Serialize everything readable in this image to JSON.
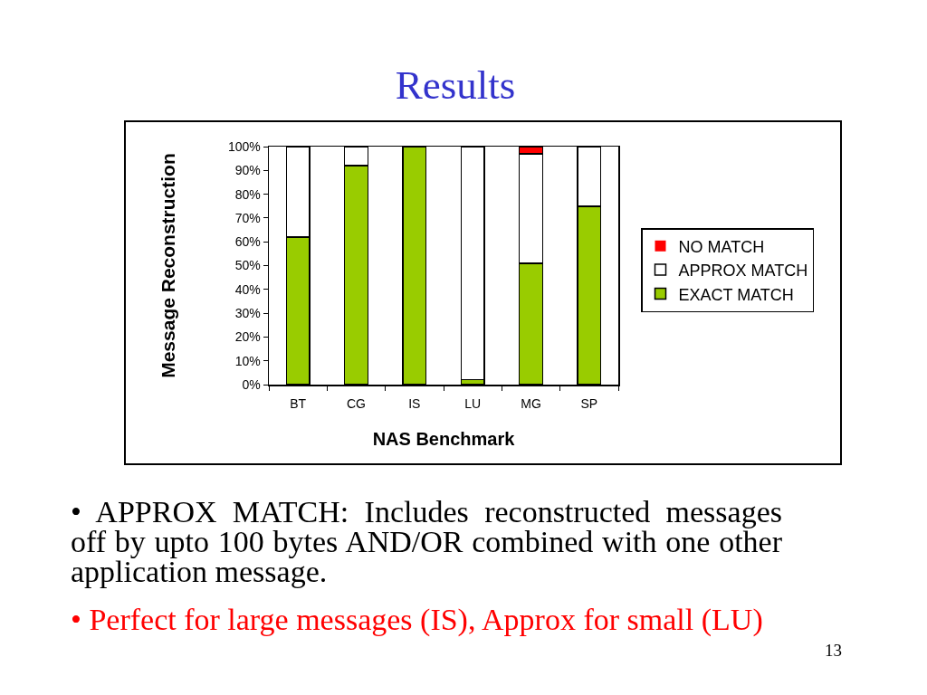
{
  "chart_data": {
    "type": "bar",
    "title": "Results",
    "xlabel": "NAS Benchmark",
    "ylabel": "Message Reconstruction",
    "categories": [
      "BT",
      "CG",
      "IS",
      "LU",
      "MG",
      "SP"
    ],
    "series": [
      {
        "name": "EXACT MATCH",
        "color": "#99cc00",
        "values": [
          62,
          92,
          100,
          2,
          51,
          75
        ]
      },
      {
        "name": "APPROX MATCH",
        "color": "#ffffff",
        "values": [
          38,
          8,
          0,
          98,
          46,
          25
        ]
      },
      {
        "name": "NO MATCH",
        "color": "#ff0000",
        "values": [
          0,
          0,
          0,
          0,
          3,
          0
        ]
      }
    ],
    "stacked": true,
    "ylim": [
      0,
      100
    ],
    "yticks": [
      {
        "value": 0,
        "label": "0%"
      },
      {
        "value": 10,
        "label": "10%"
      },
      {
        "value": 20,
        "label": "20%"
      },
      {
        "value": 30,
        "label": "30%"
      },
      {
        "value": 40,
        "label": "40%"
      },
      {
        "value": 50,
        "label": "50%"
      },
      {
        "value": 60,
        "label": "60%"
      },
      {
        "value": 70,
        "label": "70%"
      },
      {
        "value": 80,
        "label": "80%"
      },
      {
        "value": 90,
        "label": "90%"
      },
      {
        "value": 100,
        "label": "100%"
      }
    ],
    "grid": false,
    "legend": "right",
    "annotations": [
      "• APPROX MATCH: Includes reconstructed messages off by upto 100 bytes AND/OR combined with one other application message.",
      "• Perfect for large messages (IS), Approx for small (LU)",
      "13"
    ]
  }
}
